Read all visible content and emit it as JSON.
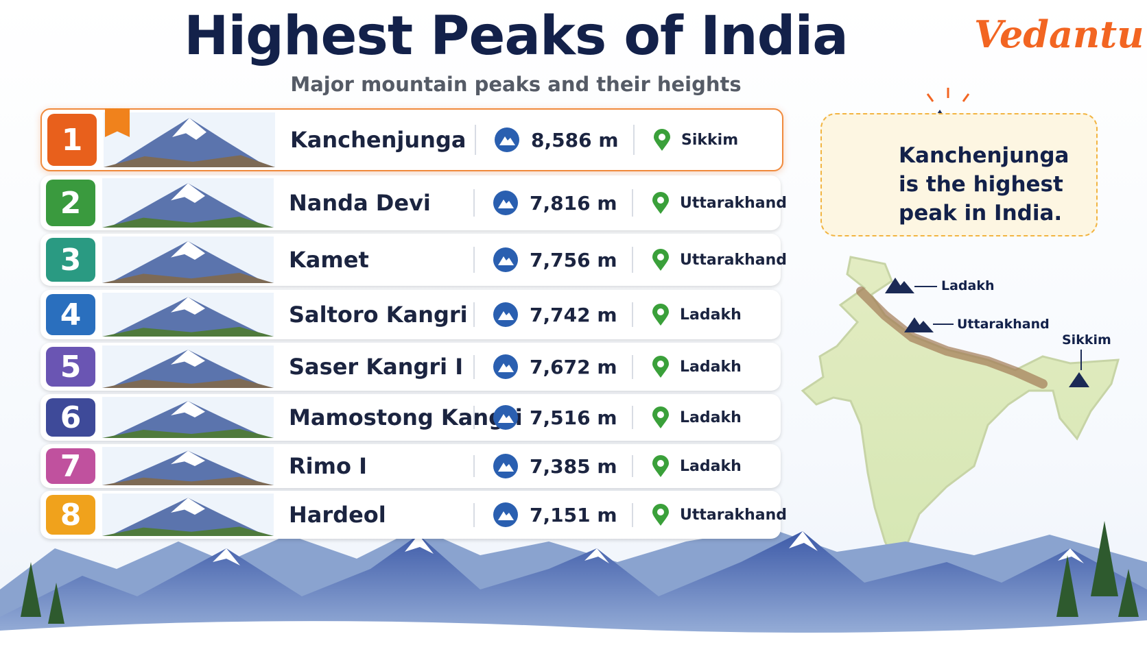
{
  "header": {
    "title": "Highest Peaks of India",
    "subtitle": "Major mountain peaks and their heights",
    "brand": "Vedantu"
  },
  "peaks": [
    {
      "rank": "1",
      "name": "Kanchenjunga",
      "height": "8,586 m",
      "state": "Sikkim"
    },
    {
      "rank": "2",
      "name": "Nanda Devi",
      "height": "7,816 m",
      "state": "Uttarakhand"
    },
    {
      "rank": "3",
      "name": "Kamet",
      "height": "7,756 m",
      "state": "Uttarakhand"
    },
    {
      "rank": "4",
      "name": "Saltoro Kangri",
      "height": "7,742 m",
      "state": "Ladakh"
    },
    {
      "rank": "5",
      "name": "Saser Kangri I",
      "height": "7,672 m",
      "state": "Ladakh"
    },
    {
      "rank": "6",
      "name": "Mamostong Kangri",
      "height": "7,516 m",
      "state": "Ladakh"
    },
    {
      "rank": "7",
      "name": "Rimo I",
      "height": "7,385 m",
      "state": "Ladakh"
    },
    {
      "rank": "8",
      "name": "Hardeol",
      "height": "7,151 m",
      "state": "Uttarakhand"
    }
  ],
  "callout": {
    "text": "Kanchenjunga is the highest peak in India."
  },
  "map": {
    "labels": [
      "Ladakh",
      "Uttarakhand",
      "Sikkim"
    ]
  }
}
